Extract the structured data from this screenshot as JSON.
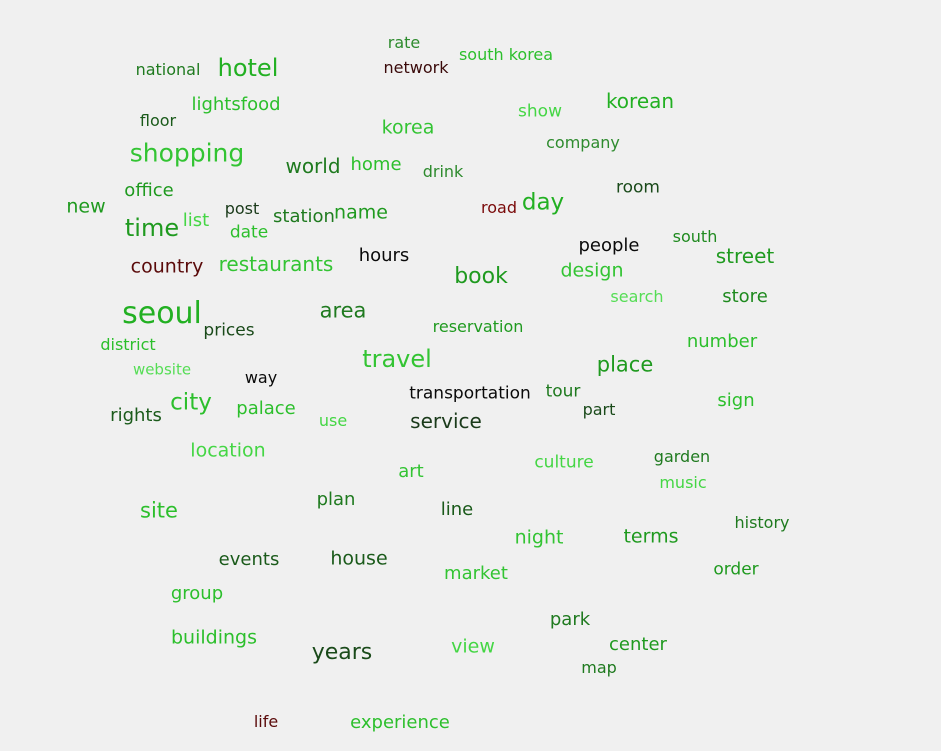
{
  "words": [
    {
      "text": "rate",
      "color": "#2e8b2e"
    },
    {
      "text": "national",
      "color": "#1f7a1f"
    },
    {
      "text": "hotel",
      "color": "#22b022"
    },
    {
      "text": "network",
      "color": "#3a0a0a"
    },
    {
      "text": "south korea",
      "color": "#2cbf2c"
    },
    {
      "text": "lightsfood",
      "color": "#2cbf2c"
    },
    {
      "text": "show",
      "color": "#44d644"
    },
    {
      "text": "korean",
      "color": "#22b022"
    },
    {
      "text": "floor",
      "color": "#1a5a1a"
    },
    {
      "text": "korea",
      "color": "#33c433"
    },
    {
      "text": "company",
      "color": "#2e8b2e"
    },
    {
      "text": "shopping",
      "color": "#33c433"
    },
    {
      "text": "world",
      "color": "#1f7a1f"
    },
    {
      "text": "home",
      "color": "#2cbf2c"
    },
    {
      "text": "drink",
      "color": "#2e8b2e"
    },
    {
      "text": "room",
      "color": "#1a4a1a"
    },
    {
      "text": "office",
      "color": "#1f9a1f"
    },
    {
      "text": "new",
      "color": "#1f9a1f"
    },
    {
      "text": "post",
      "color": "#1a3a1a"
    },
    {
      "text": "station",
      "color": "#1f7a1f"
    },
    {
      "text": "name",
      "color": "#1f9a1f"
    },
    {
      "text": "road",
      "color": "#7a0a0a"
    },
    {
      "text": "day",
      "color": "#22b022"
    },
    {
      "text": "time",
      "color": "#1f9a1f"
    },
    {
      "text": "list",
      "color": "#44d644"
    },
    {
      "text": "date",
      "color": "#2cbf2c"
    },
    {
      "text": "people",
      "color": "#0a0a0a"
    },
    {
      "text": "south",
      "color": "#1f8a1f"
    },
    {
      "text": "street",
      "color": "#1f9a1f"
    },
    {
      "text": "country",
      "color": "#5a0a0a"
    },
    {
      "text": "restaurants",
      "color": "#33c433"
    },
    {
      "text": "hours",
      "color": "#0a0a0a"
    },
    {
      "text": "book",
      "color": "#1f9a1f"
    },
    {
      "text": "design",
      "color": "#33c433"
    },
    {
      "text": "search",
      "color": "#55dd55"
    },
    {
      "text": "store",
      "color": "#1f8a1f"
    },
    {
      "text": "seoul",
      "color": "#22b022"
    },
    {
      "text": "area",
      "color": "#1f7a1f"
    },
    {
      "text": "prices",
      "color": "#1a4a1a"
    },
    {
      "text": "reservation",
      "color": "#1f9a1f"
    },
    {
      "text": "district",
      "color": "#2cbf2c"
    },
    {
      "text": "number",
      "color": "#2cbf2c"
    },
    {
      "text": "travel",
      "color": "#33c433"
    },
    {
      "text": "website",
      "color": "#55dd55"
    },
    {
      "text": "place",
      "color": "#1f9a1f"
    },
    {
      "text": "way",
      "color": "#0a0a0a"
    },
    {
      "text": "transportation",
      "color": "#0a0a0a"
    },
    {
      "text": "tour",
      "color": "#1f7a1f"
    },
    {
      "text": "rights",
      "color": "#1a5a1a"
    },
    {
      "text": "city",
      "color": "#2cbf2c"
    },
    {
      "text": "palace",
      "color": "#2cbf2c"
    },
    {
      "text": "part",
      "color": "#1a4a1a"
    },
    {
      "text": "sign",
      "color": "#2cbf2c"
    },
    {
      "text": "use",
      "color": "#44d644"
    },
    {
      "text": "service",
      "color": "#1a3a1a"
    },
    {
      "text": "location",
      "color": "#44d644"
    },
    {
      "text": "culture",
      "color": "#44d644"
    },
    {
      "text": "garden",
      "color": "#1f7a1f"
    },
    {
      "text": "art",
      "color": "#33c433"
    },
    {
      "text": "music",
      "color": "#44d644"
    },
    {
      "text": "plan",
      "color": "#1f7a1f"
    },
    {
      "text": "site",
      "color": "#2cbf2c"
    },
    {
      "text": "line",
      "color": "#1a5a1a"
    },
    {
      "text": "history",
      "color": "#1f7a1f"
    },
    {
      "text": "night",
      "color": "#33c433"
    },
    {
      "text": "terms",
      "color": "#1f9a1f"
    },
    {
      "text": "events",
      "color": "#1a5a1a"
    },
    {
      "text": "house",
      "color": "#1a5a1a"
    },
    {
      "text": "market",
      "color": "#33c433"
    },
    {
      "text": "order",
      "color": "#1f9a1f"
    },
    {
      "text": "group",
      "color": "#2cbf2c"
    },
    {
      "text": "park",
      "color": "#1f7a1f"
    },
    {
      "text": "buildings",
      "color": "#2cbf2c"
    },
    {
      "text": "years",
      "color": "#1a4a1a"
    },
    {
      "text": "view",
      "color": "#44d644"
    },
    {
      "text": "center",
      "color": "#1f9a1f"
    },
    {
      "text": "map",
      "color": "#1f7a1f"
    },
    {
      "text": "life",
      "color": "#5a0a0a"
    },
    {
      "text": "experience",
      "color": "#2cbf2c"
    }
  ]
}
